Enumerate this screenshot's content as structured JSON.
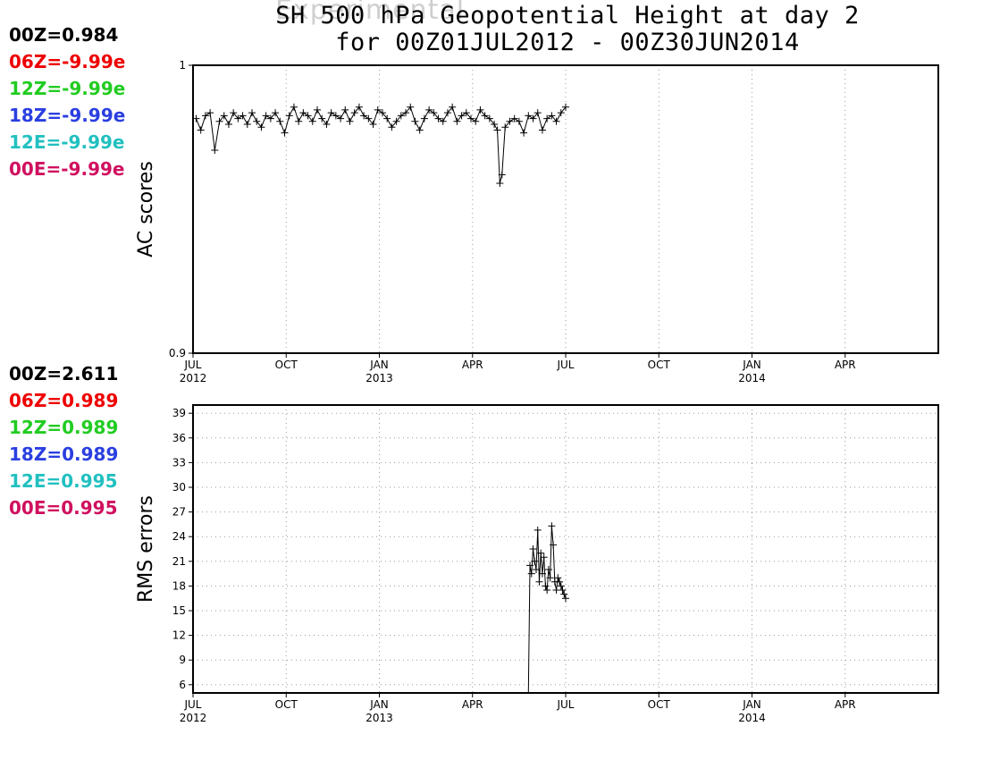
{
  "header": {
    "ghost_title": "Experimental",
    "title_line1": "SH 500 hPa Geopotential Height at day 2",
    "title_line2": "for 00Z01JUL2012 - 00Z30JUN2014"
  },
  "colors": {
    "00Z": "#000000",
    "06Z": "#ee0000",
    "12Z": "#22cc22",
    "18Z": "#2a3fe0",
    "12E": "#22c0c0",
    "00E": "#d0105f",
    "grid": "#9a9a9a",
    "frame": "#000000"
  },
  "ac_legend": [
    {
      "key": "00Z",
      "text": "00Z=0.984"
    },
    {
      "key": "06Z",
      "text": "06Z=-9.99e"
    },
    {
      "key": "12Z",
      "text": "12Z=-9.99e"
    },
    {
      "key": "18Z",
      "text": "18Z=-9.99e"
    },
    {
      "key": "12E",
      "text": "12E=-9.99e"
    },
    {
      "key": "00E",
      "text": "00E=-9.99e"
    }
  ],
  "rms_legend": [
    {
      "key": "00Z",
      "text": "00Z=2.611"
    },
    {
      "key": "06Z",
      "text": "06Z=0.989"
    },
    {
      "key": "12Z",
      "text": "12Z=0.989"
    },
    {
      "key": "18Z",
      "text": "18Z=0.989"
    },
    {
      "key": "12E",
      "text": "12E=0.995"
    },
    {
      "key": "00E",
      "text": "00E=0.995"
    }
  ],
  "chart_data": [
    {
      "type": "line",
      "ylabel": "AC scores",
      "xlabel": "",
      "ylim": [
        0.9,
        1.0
      ],
      "y_tick_labels": [
        "0.9",
        "1"
      ],
      "y_ticks": [
        0.9,
        1.0
      ],
      "x_range_months": [
        0,
        24
      ],
      "x_ticks": [
        {
          "month": 0,
          "label": "JUL",
          "year": "2012"
        },
        {
          "month": 3,
          "label": "OCT",
          "year": ""
        },
        {
          "month": 6,
          "label": "JAN",
          "year": "2013"
        },
        {
          "month": 9,
          "label": "APR",
          "year": ""
        },
        {
          "month": 12,
          "label": "JUL",
          "year": ""
        },
        {
          "month": 15,
          "label": "OCT",
          "year": ""
        },
        {
          "month": 18,
          "label": "JAN",
          "year": "2014"
        },
        {
          "month": 21,
          "label": "APR",
          "year": ""
        }
      ],
      "grid": true,
      "series": [
        {
          "key": "00Z",
          "x_months": [
            0.1,
            0.25,
            0.4,
            0.55,
            0.7,
            0.85,
            1.0,
            1.15,
            1.3,
            1.45,
            1.6,
            1.75,
            1.9,
            2.05,
            2.2,
            2.35,
            2.5,
            2.65,
            2.8,
            2.95,
            3.1,
            3.25,
            3.4,
            3.55,
            3.7,
            3.85,
            4.0,
            4.15,
            4.3,
            4.45,
            4.6,
            4.75,
            4.9,
            5.05,
            5.2,
            5.35,
            5.5,
            5.65,
            5.8,
            5.95,
            6.1,
            6.25,
            6.4,
            6.55,
            6.7,
            6.85,
            7.0,
            7.15,
            7.3,
            7.45,
            7.6,
            7.75,
            7.9,
            8.05,
            8.2,
            8.35,
            8.5,
            8.65,
            8.8,
            8.95,
            9.1,
            9.25,
            9.4,
            9.55,
            9.7,
            9.8,
            9.88,
            9.95,
            10.05,
            10.2,
            10.35,
            10.5,
            10.65,
            10.8,
            10.95,
            11.1,
            11.25,
            11.4,
            11.55,
            11.7,
            11.85,
            12.0
          ],
          "values": [
            0.9815,
            0.9775,
            0.9825,
            0.9835,
            0.9705,
            0.9805,
            0.9825,
            0.9795,
            0.9835,
            0.9815,
            0.9825,
            0.9795,
            0.9835,
            0.9805,
            0.9785,
            0.9825,
            0.9815,
            0.9835,
            0.9805,
            0.9765,
            0.9825,
            0.9855,
            0.9805,
            0.9835,
            0.9825,
            0.9805,
            0.9845,
            0.9815,
            0.9795,
            0.9835,
            0.9825,
            0.9815,
            0.9845,
            0.9805,
            0.9835,
            0.9855,
            0.9825,
            0.9815,
            0.9795,
            0.9845,
            0.9835,
            0.9815,
            0.9785,
            0.9805,
            0.9825,
            0.9835,
            0.9855,
            0.9805,
            0.9775,
            0.9815,
            0.9845,
            0.9835,
            0.9815,
            0.9805,
            0.9835,
            0.9855,
            0.9805,
            0.9825,
            0.9835,
            0.9815,
            0.9805,
            0.9845,
            0.9825,
            0.9815,
            0.9795,
            0.9775,
            0.959,
            0.962,
            0.9785,
            0.9805,
            0.9815,
            0.9805,
            0.9765,
            0.9825,
            0.9815,
            0.9835,
            0.9775,
            0.9815,
            0.9825,
            0.9805,
            0.9835,
            0.9855
          ]
        }
      ]
    },
    {
      "type": "line",
      "ylabel": "RMS errors",
      "xlabel": "",
      "ylim": [
        5,
        40
      ],
      "y_ticks": [
        6,
        9,
        12,
        15,
        18,
        21,
        24,
        27,
        30,
        33,
        36,
        39
      ],
      "x_range_months": [
        0,
        24
      ],
      "x_ticks": [
        {
          "month": 0,
          "label": "JUL",
          "year": "2012"
        },
        {
          "month": 3,
          "label": "OCT",
          "year": ""
        },
        {
          "month": 6,
          "label": "JAN",
          "year": "2013"
        },
        {
          "month": 9,
          "label": "APR",
          "year": ""
        },
        {
          "month": 12,
          "label": "JUL",
          "year": ""
        },
        {
          "month": 15,
          "label": "OCT",
          "year": ""
        },
        {
          "month": 18,
          "label": "JAN",
          "year": "2014"
        },
        {
          "month": 21,
          "label": "APR",
          "year": ""
        }
      ],
      "grid": true,
      "series": [
        {
          "key": "00Z",
          "x_months": [
            10.8,
            10.85,
            10.9,
            10.95,
            11.0,
            11.05,
            11.1,
            11.15,
            11.2,
            11.25,
            11.3,
            11.35,
            11.4,
            11.45,
            11.5,
            11.55,
            11.6,
            11.65,
            11.7,
            11.75,
            11.8,
            11.85,
            11.9,
            11.95,
            12.0
          ],
          "values": [
            5,
            20.5,
            19.5,
            22.5,
            21.0,
            20.0,
            24.8,
            18.5,
            22.0,
            19.5,
            21.5,
            18.0,
            17.5,
            20.0,
            19.0,
            25.3,
            23.0,
            18.5,
            17.5,
            19.0,
            18.5,
            18.0,
            17.5,
            17.0,
            16.5
          ]
        }
      ]
    }
  ]
}
